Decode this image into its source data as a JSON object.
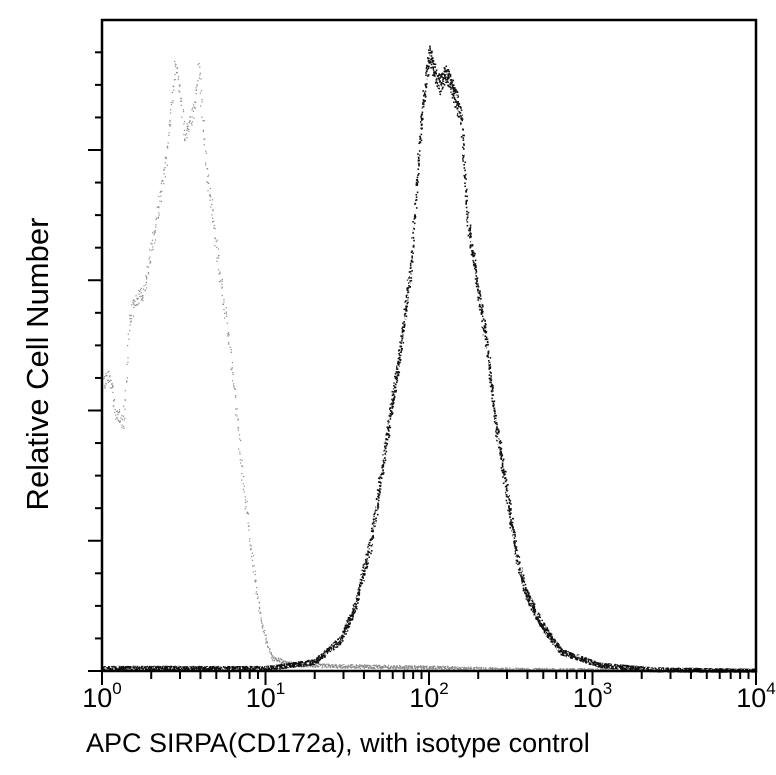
{
  "chart_data": {
    "type": "line",
    "title": "",
    "xlabel": "APC SIRPA(CD172a), with isotype control",
    "ylabel": "Relative Cell Number",
    "xscale": "log",
    "xlim": [
      1,
      10000
    ],
    "ylim": [
      0,
      100
    ],
    "grid": false,
    "legend": "none",
    "x_ticks": [
      {
        "base": "10",
        "exp": "0",
        "value": 1
      },
      {
        "base": "10",
        "exp": "1",
        "value": 10
      },
      {
        "base": "10",
        "exp": "2",
        "value": 100
      },
      {
        "base": "10",
        "exp": "3",
        "value": 1000
      },
      {
        "base": "10",
        "exp": "4",
        "value": 10000
      }
    ],
    "series": [
      {
        "color": "#8a8a8a",
        "x": [
          1,
          1.1,
          1.2,
          1.35,
          1.45,
          1.55,
          1.8,
          2.1,
          2.5,
          2.8,
          3.2,
          3.6,
          3.9,
          4.3,
          5,
          6,
          6.6,
          7.2,
          8,
          9,
          10,
          11,
          15,
          30,
          100,
          300,
          1000,
          10000
        ],
        "y": [
          44,
          46,
          40,
          38,
          52,
          57,
          58,
          68,
          80,
          94,
          82,
          86,
          93,
          78,
          65,
          50,
          40,
          30,
          20,
          10,
          5,
          2,
          1,
          0.8,
          0.6,
          0.3,
          0.2,
          0.1
        ]
      },
      {
        "color": "#111111",
        "x": [
          1,
          10,
          20,
          29,
          35,
          44,
          58,
          67,
          77,
          89,
          100,
          115,
          127,
          145,
          157,
          170,
          195,
          225,
          255,
          295,
          340,
          390,
          490,
          640,
          1100,
          2300,
          10000
        ],
        "y": [
          0.5,
          0.5,
          1.5,
          5,
          10,
          20,
          40,
          50,
          62,
          85,
          95,
          90,
          92,
          88,
          85,
          70,
          60,
          50,
          38,
          28,
          18,
          12,
          7,
          3,
          1,
          0.3,
          0.1
        ]
      }
    ]
  }
}
